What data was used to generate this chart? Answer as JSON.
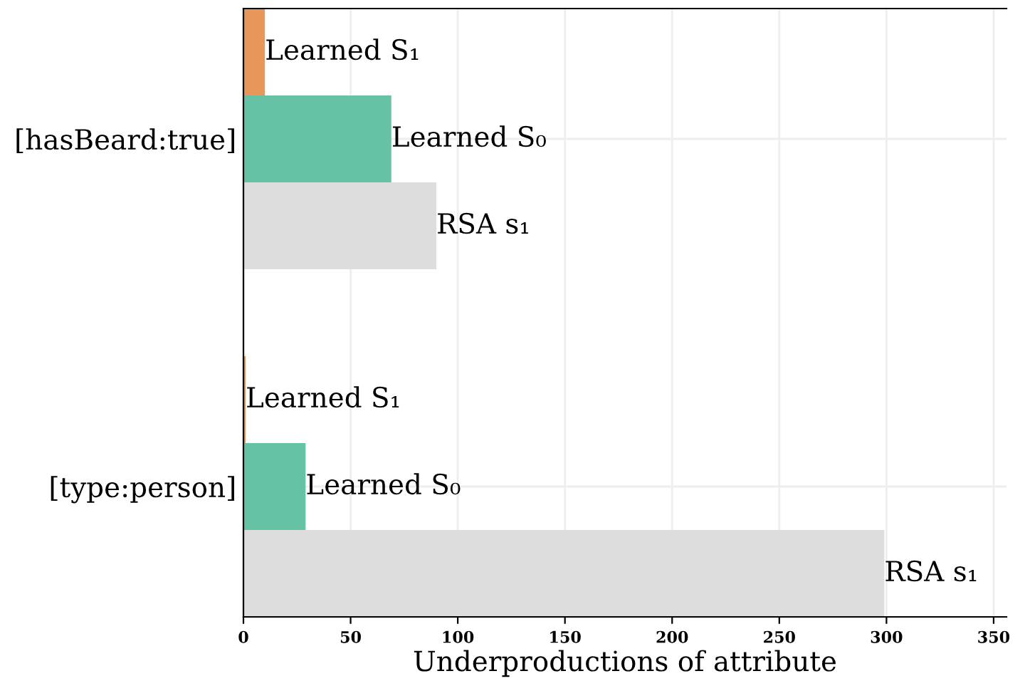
{
  "chart_data": {
    "type": "bar",
    "orientation": "horizontal",
    "xlabel": "Underproductions of attribute",
    "categories": [
      "[hasBeard:true]",
      "[type:person]"
    ],
    "series": [
      {
        "name": "Learned S₁",
        "color": "#e8965a",
        "values": [
          10,
          1
        ]
      },
      {
        "name": "Learned S₀",
        "color": "#66c2a5",
        "values": [
          69,
          29
        ]
      },
      {
        "name": "RSA s₁",
        "color": "#dddddd",
        "values": [
          90,
          299
        ]
      }
    ],
    "xlim": [
      0,
      356
    ],
    "xticks": [
      0,
      50,
      100,
      150,
      200,
      250,
      300,
      350
    ],
    "grid": true,
    "legend": false
  }
}
